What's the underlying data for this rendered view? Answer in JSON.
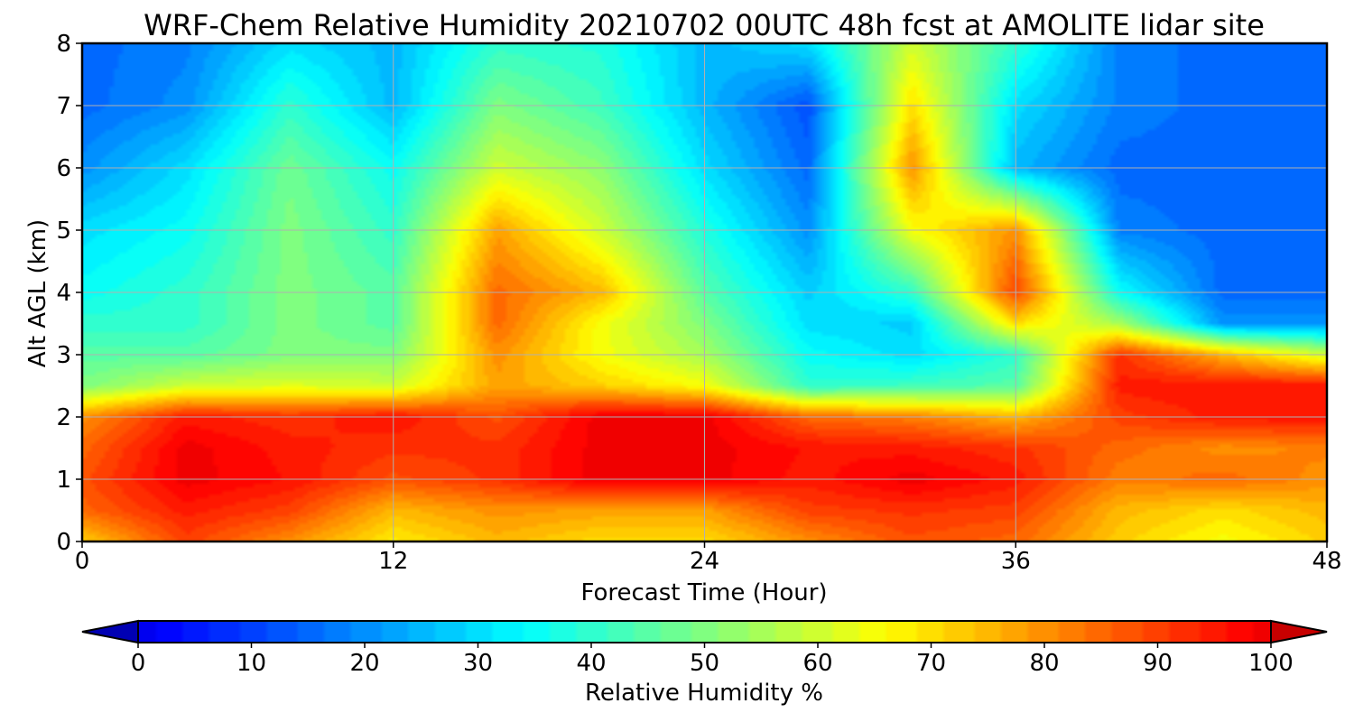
{
  "chart_data": {
    "type": "heatmap",
    "subtype": "filled-contour",
    "title": "WRF-Chem Relative Humidity 20210702 00UTC 48h fcst at AMOLITE lidar site",
    "xlabel": "Forecast Time (Hour)",
    "ylabel": "Alt AGL (km)",
    "xlim": [
      0,
      48
    ],
    "ylim": [
      0,
      8
    ],
    "xticks": [
      "0",
      "12",
      "24",
      "36",
      "48"
    ],
    "yticks": [
      "0",
      "1",
      "2",
      "3",
      "4",
      "5",
      "6",
      "7",
      "8"
    ],
    "grid": true,
    "colormap": "jet",
    "colorbar": {
      "label": "Relative Humidity %",
      "range": [
        0,
        100
      ],
      "ticks": [
        "0",
        "10",
        "20",
        "30",
        "40",
        "50",
        "60",
        "70",
        "80",
        "90",
        "100"
      ],
      "extend": "both",
      "orientation": "horizontal"
    },
    "x": [
      0,
      4,
      8,
      12,
      16,
      20,
      24,
      28,
      32,
      36,
      40,
      44,
      48
    ],
    "y": [
      0,
      0.5,
      1,
      1.5,
      2,
      2.5,
      3,
      3.5,
      4,
      5,
      6,
      7,
      8
    ],
    "z": [
      [
        72,
        90,
        80,
        68,
        75,
        70,
        70,
        80,
        88,
        85,
        72,
        65,
        72
      ],
      [
        85,
        95,
        90,
        75,
        80,
        78,
        78,
        90,
        92,
        90,
        75,
        70,
        75
      ],
      [
        88,
        100,
        96,
        88,
        92,
        100,
        100,
        95,
        100,
        95,
        82,
        85,
        80
      ],
      [
        85,
        100,
        95,
        92,
        92,
        100,
        100,
        96,
        95,
        92,
        85,
        80,
        82
      ],
      [
        80,
        95,
        92,
        96,
        88,
        100,
        100,
        85,
        82,
        75,
        90,
        95,
        96
      ],
      [
        50,
        60,
        62,
        60,
        78,
        72,
        65,
        40,
        42,
        45,
        95,
        96,
        96
      ],
      [
        45,
        45,
        50,
        50,
        80,
        65,
        55,
        35,
        30,
        40,
        92,
        75,
        60
      ],
      [
        40,
        40,
        50,
        45,
        85,
        65,
        50,
        30,
        28,
        70,
        55,
        20,
        20
      ],
      [
        35,
        40,
        50,
        45,
        85,
        75,
        45,
        28,
        40,
        90,
        35,
        15,
        15
      ],
      [
        30,
        35,
        50,
        40,
        78,
        60,
        38,
        20,
        65,
        80,
        18,
        15,
        15
      ],
      [
        20,
        30,
        48,
        35,
        60,
        52,
        30,
        15,
        80,
        25,
        15,
        15,
        15
      ],
      [
        15,
        20,
        40,
        25,
        50,
        42,
        25,
        12,
        70,
        30,
        18,
        15,
        15
      ],
      [
        15,
        18,
        30,
        25,
        40,
        38,
        25,
        30,
        60,
        40,
        18,
        15,
        15
      ]
    ]
  }
}
